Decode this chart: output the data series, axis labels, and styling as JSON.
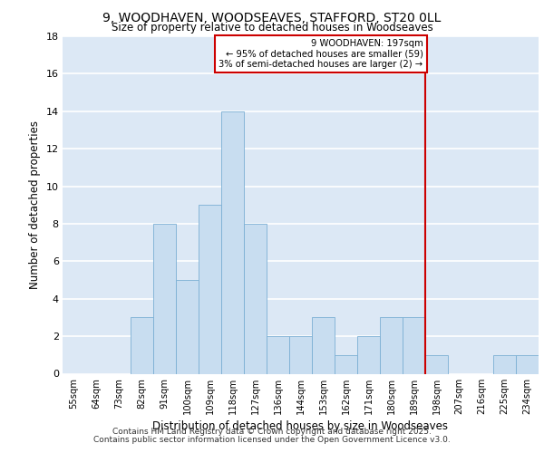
{
  "title1": "9, WOODHAVEN, WOODSEAVES, STAFFORD, ST20 0LL",
  "title2": "Size of property relative to detached houses in Woodseaves",
  "xlabel": "Distribution of detached houses by size in Woodseaves",
  "ylabel": "Number of detached properties",
  "categories": [
    "55sqm",
    "64sqm",
    "73sqm",
    "82sqm",
    "91sqm",
    "100sqm",
    "109sqm",
    "118sqm",
    "127sqm",
    "136sqm",
    "144sqm",
    "153sqm",
    "162sqm",
    "171sqm",
    "180sqm",
    "189sqm",
    "198sqm",
    "207sqm",
    "216sqm",
    "225sqm",
    "234sqm"
  ],
  "values": [
    0,
    0,
    0,
    3,
    8,
    5,
    9,
    14,
    8,
    2,
    2,
    3,
    1,
    2,
    3,
    3,
    1,
    0,
    0,
    1,
    1
  ],
  "bar_color": "#c8ddf0",
  "bar_edge_color": "#7bafd4",
  "background_color": "#dce8f5",
  "grid_color": "#ffffff",
  "vline_x_index": 16,
  "vline_color": "#cc0000",
  "annotation_text": "9 WOODHAVEN: 197sqm\n← 95% of detached houses are smaller (59)\n3% of semi-detached houses are larger (2) →",
  "annotation_box_edge_color": "#cc0000",
  "ylim": [
    0,
    18
  ],
  "yticks": [
    0,
    2,
    4,
    6,
    8,
    10,
    12,
    14,
    16,
    18
  ],
  "footer1": "Contains HM Land Registry data © Crown copyright and database right 2025.",
  "footer2": "Contains public sector information licensed under the Open Government Licence v3.0."
}
